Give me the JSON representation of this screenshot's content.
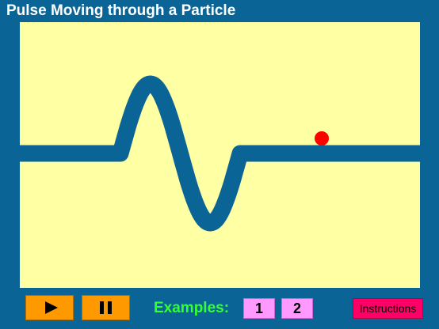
{
  "app": {
    "title": "Pulse Moving through a Particle"
  },
  "controls": {
    "play_icon": "play-icon",
    "pause_icon": "pause-icon"
  },
  "examples": {
    "label": "Examples:",
    "buttons": [
      "1",
      "2"
    ]
  },
  "instructions": {
    "label": "Instructions"
  },
  "colors": {
    "background": "#0b6496",
    "canvas": "#ffffa3",
    "rope": "#0b6496",
    "particle": "#ff0000",
    "control_button": "#ff9900",
    "examples_label": "#33ff33",
    "example_button": "#ff99ff",
    "instructions_button": "#ff0066"
  }
}
